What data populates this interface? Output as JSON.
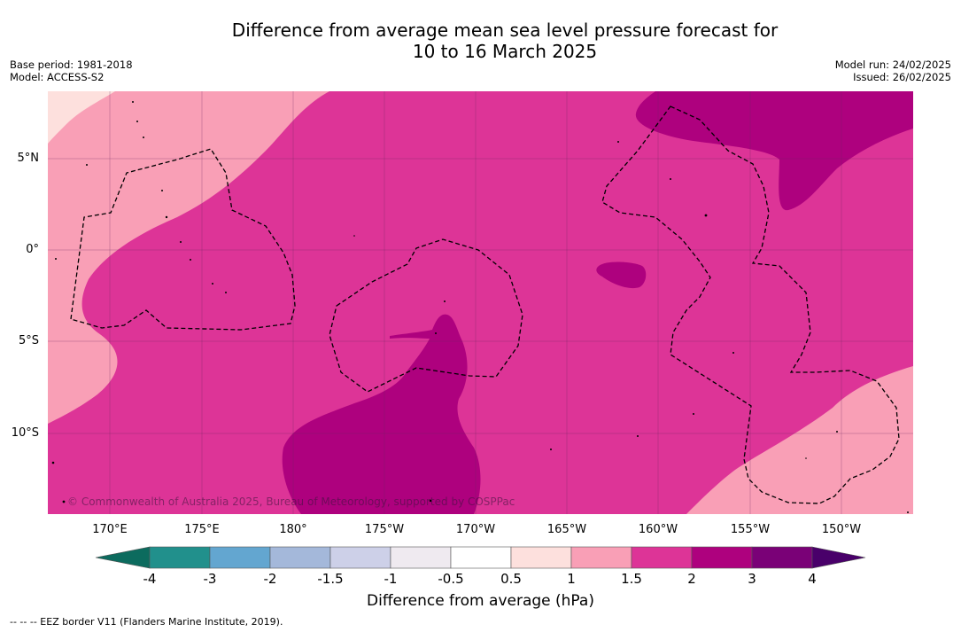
{
  "title": {
    "line1": "Difference from average mean sea level pressure forecast for",
    "line2": "10 to 16 March 2025"
  },
  "meta": {
    "base_period": "Base period: 1981-2018",
    "model": "Model: ACCESS-S2",
    "model_run": "Model run: 24/02/2025",
    "issued": "Issued: 26/02/2025"
  },
  "map": {
    "longitude_labels": [
      "170°E",
      "175°E",
      "180°",
      "175°W",
      "170°W",
      "165°W",
      "160°W",
      "155°W",
      "150°W"
    ],
    "latitude_labels": [
      "5°N",
      "0°",
      "5°S",
      "10°S"
    ],
    "copyright": "© Commonwealth of Australia 2025, Bureau of Meteorology, supported by COSPPac"
  },
  "colorbar": {
    "title": "Difference from average (hPa)",
    "tick_labels": [
      "-4",
      "-3",
      "-2",
      "-1.5",
      "-1",
      "-0.5",
      "0.5",
      "1",
      "1.5",
      "2",
      "3",
      "4"
    ],
    "colors": {
      "below_min": "#0c6b5e",
      "bins": [
        "#21908c",
        "#63a6d0",
        "#a4b8da",
        "#cdd0e8",
        "#efeaf0",
        "#ffffff",
        "#fde0dd",
        "#f99fb6",
        "#dd3497",
        "#ae017e",
        "#7a0177"
      ],
      "above_max": "#49006a"
    }
  },
  "footnote": "--  --  -- EEZ border V11 (Flanders Marine Institute, 2019)."
}
